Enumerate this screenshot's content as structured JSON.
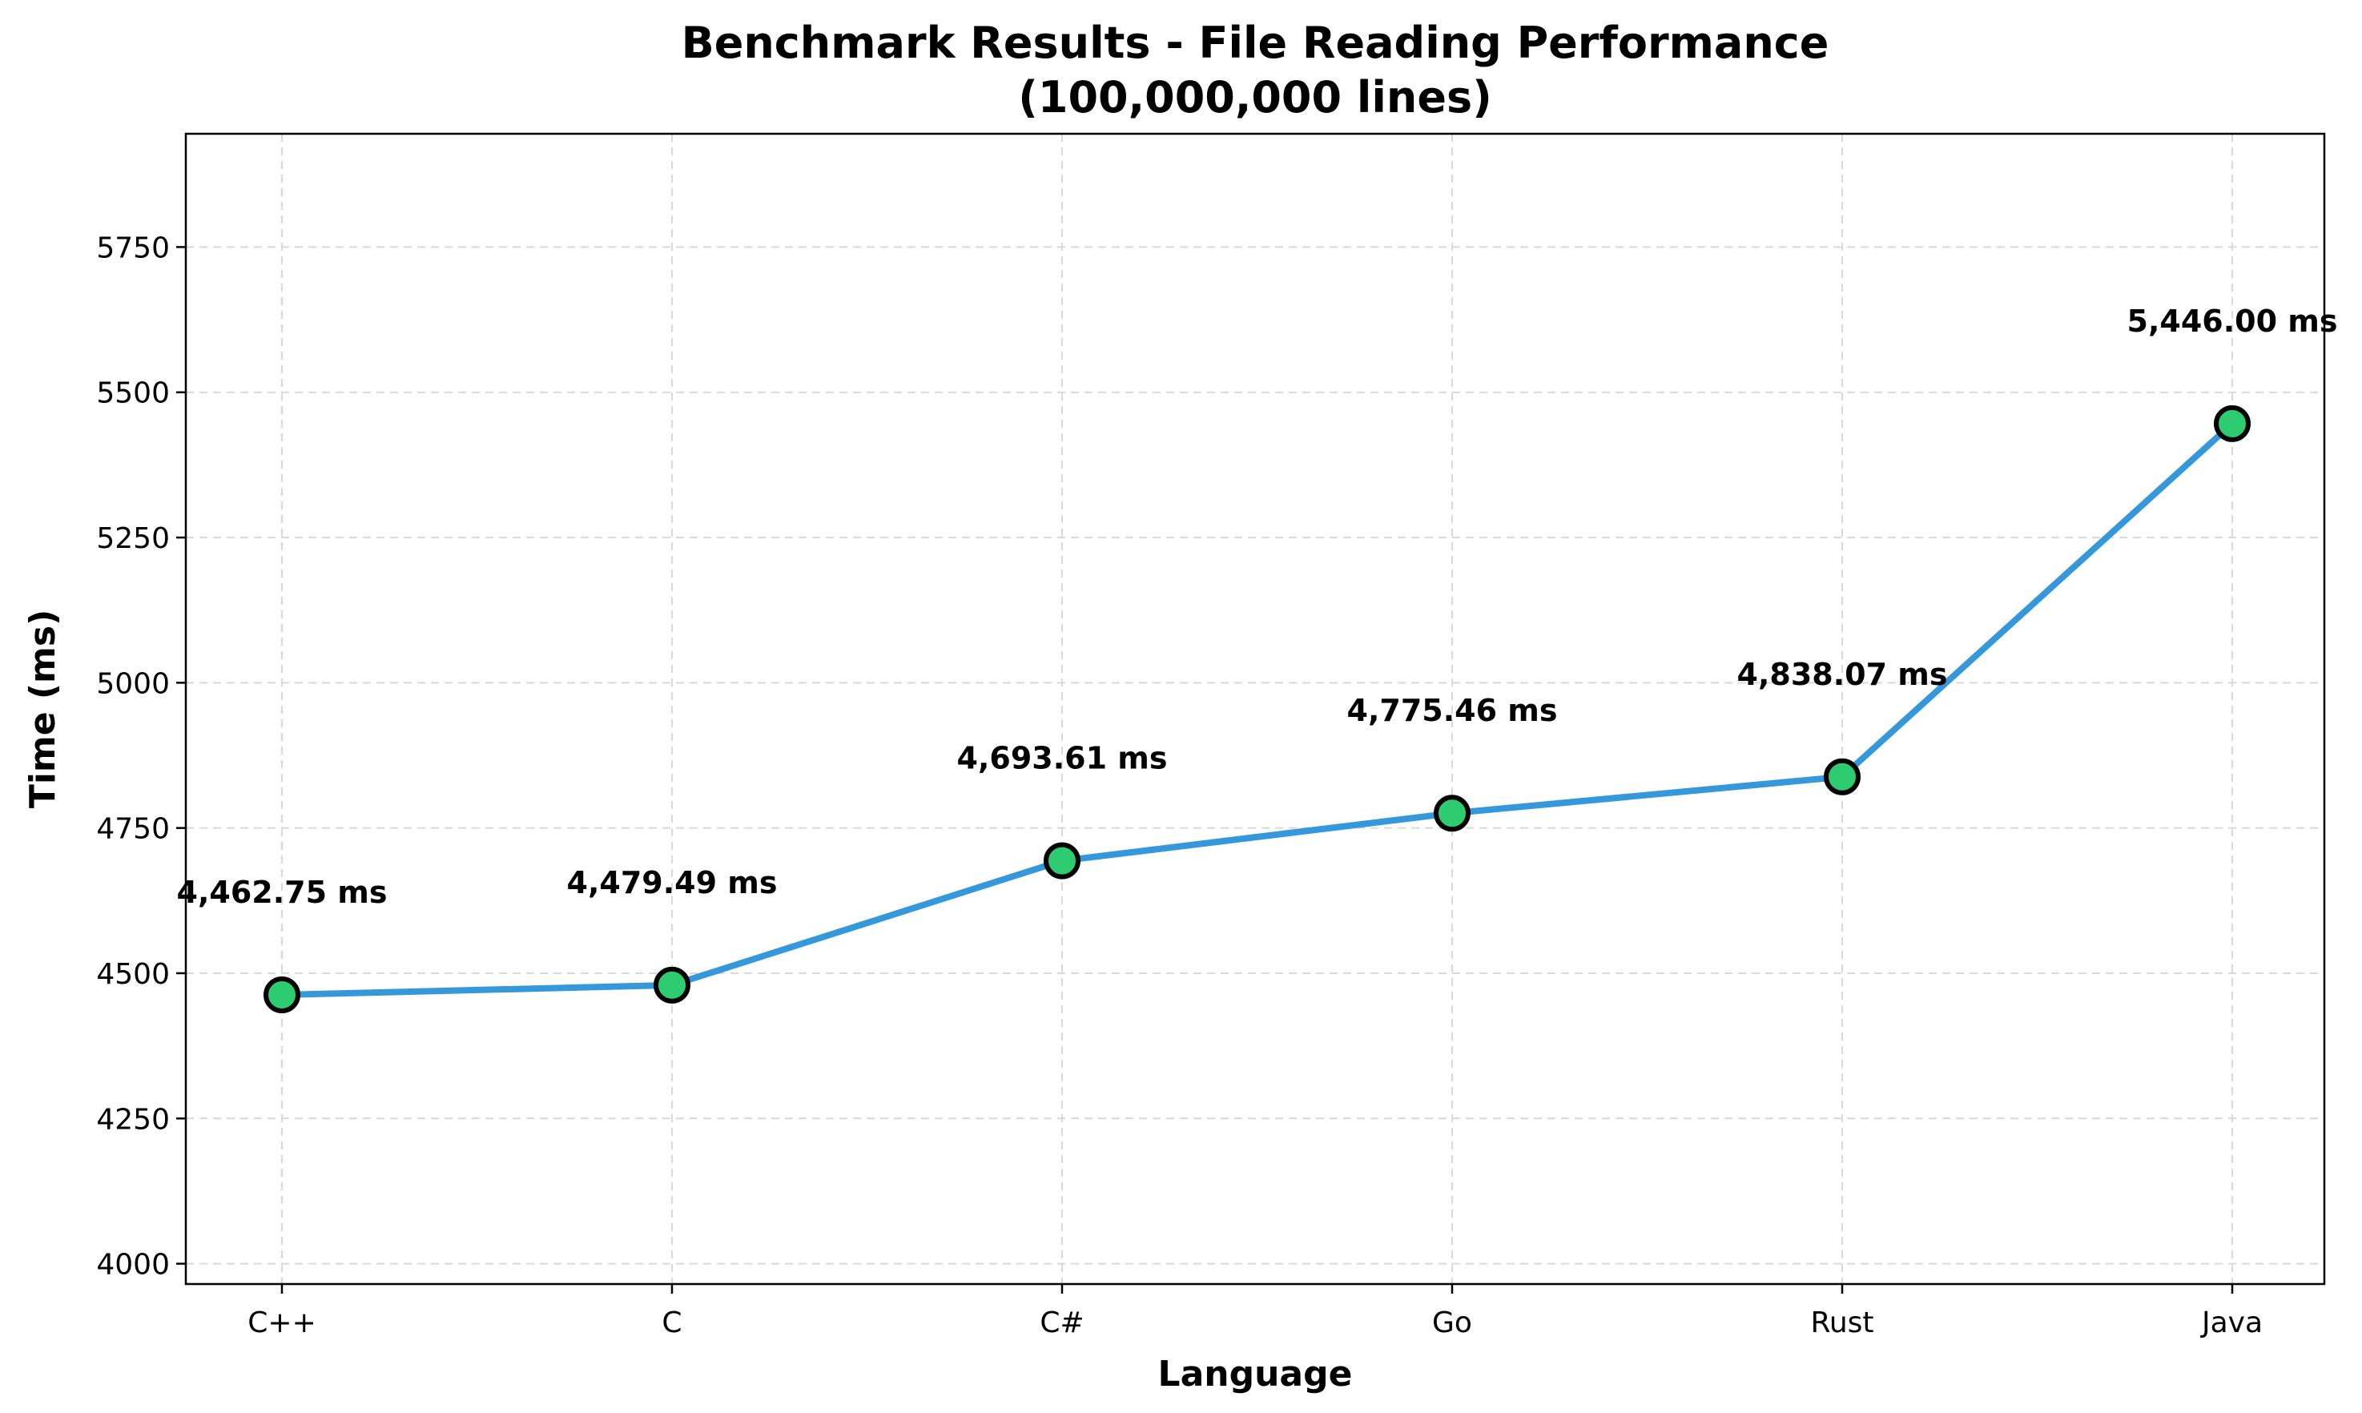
{
  "chart_data": {
    "type": "line",
    "title": "Benchmark Results - File Reading Performance",
    "subtitle": "(100,000,000 lines)",
    "xlabel": "Language",
    "ylabel": "Time (ms)",
    "categories": [
      "C++",
      "C",
      "C#",
      "Go",
      "Rust",
      "Java"
    ],
    "values": [
      4462.75,
      4479.49,
      4693.61,
      4775.46,
      4838.07,
      5446.0
    ],
    "data_labels": [
      "4,462.75 ms",
      "4,479.49 ms",
      "4,693.61 ms",
      "4,775.46 ms",
      "4,838.07 ms",
      "5,446.00 ms"
    ],
    "ylim": [
      3965,
      5945
    ],
    "yticks": [
      4000,
      4250,
      4500,
      4750,
      5000,
      5250,
      5500,
      5750
    ],
    "grid": true,
    "line_color": "#3498db",
    "marker_color": "#2ecc71",
    "marker_edge_color": "#000000"
  }
}
